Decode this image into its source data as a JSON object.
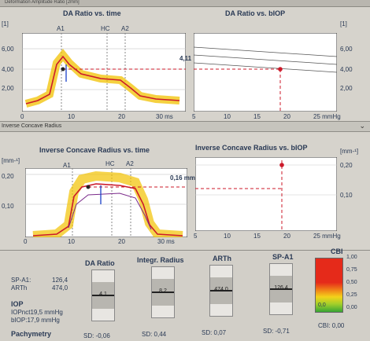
{
  "header": {
    "title": "Deformation Amplitude Ratio [2mm]"
  },
  "top": {
    "left": {
      "title": "DA Ratio vs. time",
      "yunit": "[1]",
      "markers": [
        "A1",
        "HC",
        "A2"
      ],
      "yticks": [
        "6,00",
        "4,00",
        "2,00"
      ],
      "xticks": [
        "0",
        "10",
        "20",
        "30 ms"
      ]
    },
    "right": {
      "title": "DA Ratio vs. bIOP",
      "yunit": "[1]",
      "value": "4,11",
      "yticks": [
        "6,00",
        "4,00",
        "2,00"
      ],
      "xticks": [
        "5",
        "10",
        "15",
        "20",
        "25 mmHg"
      ]
    }
  },
  "section2": {
    "title": "Inverse Concave Radius"
  },
  "mid": {
    "left": {
      "title": "Inverse Concave Radius vs. time",
      "yunit": "[mm-¹]",
      "markers": [
        "A1",
        "HC",
        "A2"
      ],
      "yticks": [
        "0,20",
        "0,10"
      ],
      "xticks": [
        "0",
        "10",
        "20",
        "30 ms"
      ]
    },
    "right": {
      "title": "Inverse Concave Radius vs. bIOP",
      "yunit": "[mm-¹]",
      "value": "0,16 mm-¹",
      "yticks": [
        "0,20",
        "0,10"
      ],
      "xticks": [
        "5",
        "10",
        "15",
        "20",
        "25 mmHg"
      ]
    }
  },
  "info": {
    "sp_a1_label": "SP-A1:",
    "sp_a1_value": "126,4",
    "arth_label": "ARTh",
    "arth_value": "474,0",
    "iop_heading": "IOP",
    "iopnct": "IOPnct19,5 mmHg",
    "biop": "bIOP:17,9 mmHg",
    "pachy": "Pachymetry"
  },
  "gauges": [
    {
      "title": "DA Ratio",
      "value": "4,1",
      "sd": "SD: -0,06"
    },
    {
      "title": "Integr. Radius",
      "value": "8,2",
      "sd": "SD: 0,44"
    },
    {
      "title": "ARTh",
      "value": "474,0",
      "sd": "SD: 0,07"
    },
    {
      "title": "SP-A1",
      "value": "126,4",
      "sd": "SD: -0,71"
    }
  ],
  "cbi": {
    "title": "CBI",
    "scale": [
      "1,00",
      "0,75",
      "0,50",
      "0,25",
      "0,00"
    ],
    "marker_value": "0,0",
    "value_text": "CBI: 0,00",
    "value": 0.0
  },
  "colors": {
    "curve": "#cc1a2a",
    "band": "#f2c200",
    "patient_dot": "#cc1a2a",
    "reference": "#555555"
  }
}
